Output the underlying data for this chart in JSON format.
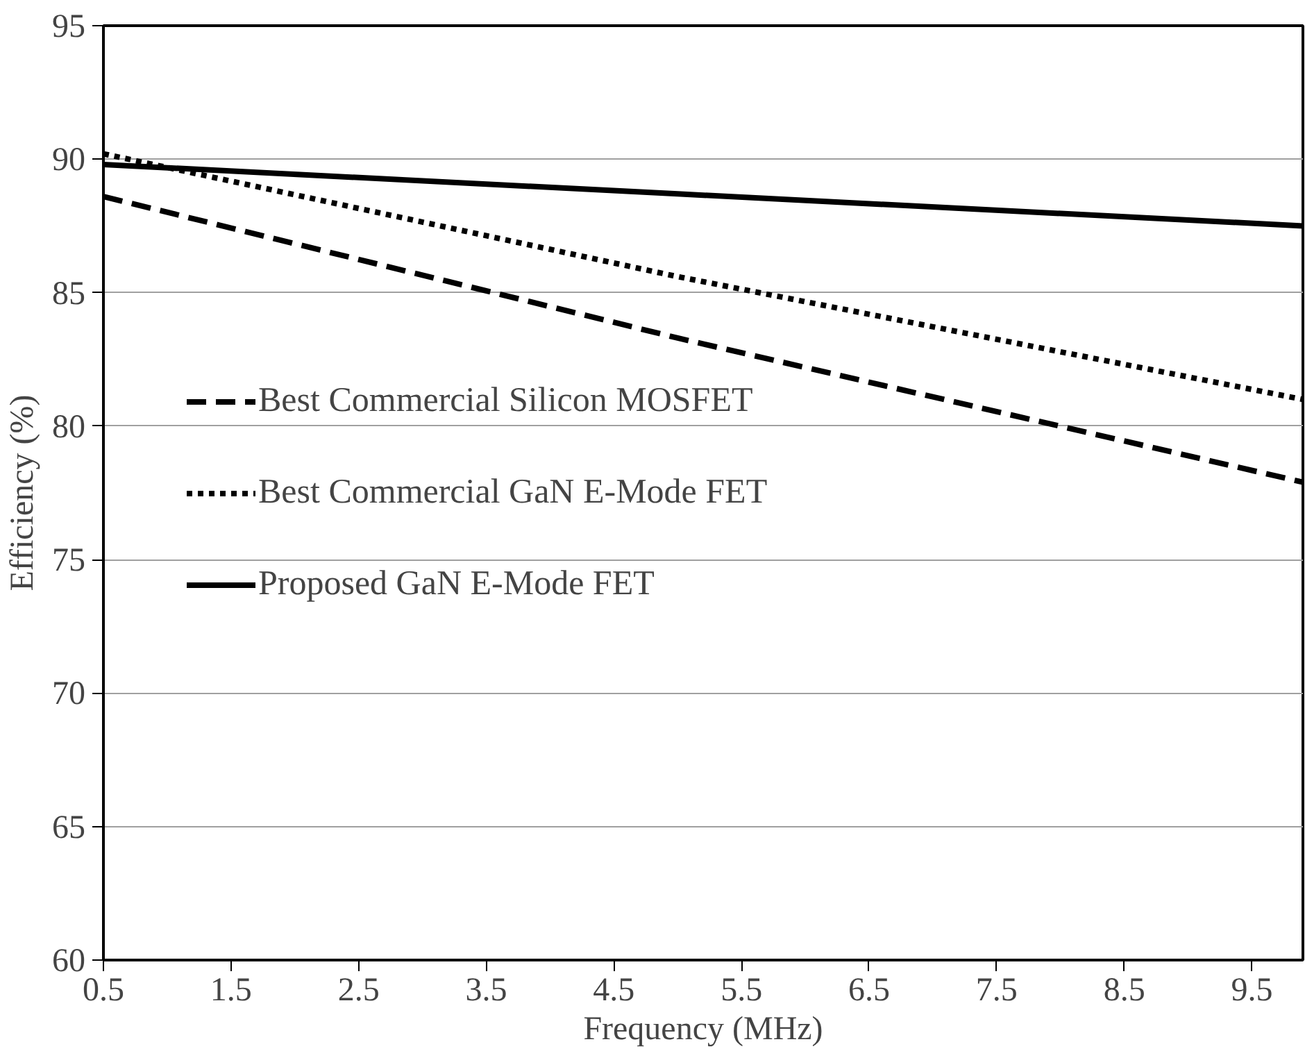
{
  "chart_data": {
    "type": "line",
    "xlabel": "Frequency (MHz)",
    "ylabel": "Efficiency (%)",
    "xlim": [
      0.5,
      9.9
    ],
    "xticks": [
      0.5,
      1.5,
      2.5,
      3.5,
      4.5,
      5.5,
      6.5,
      7.5,
      8.5,
      9.5
    ],
    "ylim": [
      60,
      95
    ],
    "yticks": [
      60,
      65,
      70,
      75,
      80,
      85,
      90,
      95
    ],
    "grid": "y",
    "legend": "left",
    "series": [
      {
        "name": "Best Commercial Silicon MOSFET",
        "color": "#000000",
        "line_style": "dashed",
        "x": [
          0.5,
          5.0,
          9.9
        ],
        "values": [
          88.6,
          83.3,
          77.9
        ]
      },
      {
        "name": "Best Commercial GaN E-Mode FET",
        "color": "#000000",
        "line_style": "dotted",
        "x": [
          0.5,
          5.0,
          9.9
        ],
        "values": [
          90.2,
          85.6,
          81.0
        ]
      },
      {
        "name": "Proposed GaN E-Mode FET",
        "color": "#000000",
        "line_style": "solid",
        "x": [
          0.5,
          5.0,
          9.9
        ],
        "values": [
          89.8,
          88.7,
          87.5
        ]
      }
    ]
  }
}
